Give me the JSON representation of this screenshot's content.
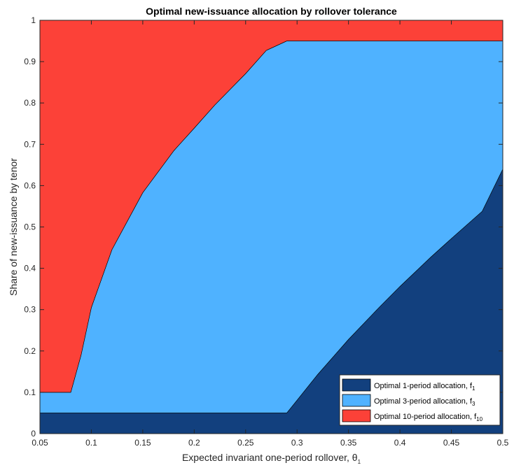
{
  "chart_data": {
    "type": "area",
    "title": "Optimal new-issuance allocation by rollover tolerance",
    "xlabel": "Expected invariant one-period rollover, θ",
    "xlabel_sub": "1",
    "ylabel": "Share of new-issuance by tenor",
    "xlim": [
      0.05,
      0.5
    ],
    "ylim": [
      0,
      1
    ],
    "x_ticks": [
      0.05,
      0.1,
      0.15,
      0.2,
      0.25,
      0.3,
      0.35,
      0.4,
      0.45,
      0.5
    ],
    "x_tick_labels": [
      "0.05",
      "0.1",
      "0.15",
      "0.2",
      "0.25",
      "0.3",
      "0.35",
      "0.4",
      "0.45",
      "0.5"
    ],
    "y_ticks": [
      0,
      0.1,
      0.2,
      0.3,
      0.4,
      0.5,
      0.6,
      0.7,
      0.8,
      0.9,
      1
    ],
    "y_tick_labels": [
      "0",
      "0.1",
      "0.2",
      "0.3",
      "0.4",
      "0.5",
      "0.6",
      "0.7",
      "0.8",
      "0.9",
      "1"
    ],
    "grid": false,
    "stacked": true,
    "legend_position": "bottom-right",
    "x": [
      0.05,
      0.08,
      0.09,
      0.1,
      0.12,
      0.15,
      0.18,
      0.2,
      0.22,
      0.25,
      0.27,
      0.29,
      0.3,
      0.32,
      0.35,
      0.38,
      0.4,
      0.43,
      0.45,
      0.48,
      0.5
    ],
    "series": [
      {
        "name": "Optimal 1-period allocation, f",
        "sub": "1",
        "color": "#12407e",
        "values": [
          0.05,
          0.05,
          0.05,
          0.05,
          0.05,
          0.05,
          0.05,
          0.05,
          0.05,
          0.05,
          0.05,
          0.05,
          0.081,
          0.143,
          0.228,
          0.306,
          0.356,
          0.427,
          0.472,
          0.538,
          0.64
        ]
      },
      {
        "name": "Optimal 3-period allocation, f",
        "sub": "3",
        "color": "#4fb2ff",
        "values": [
          0.05,
          0.05,
          0.14,
          0.255,
          0.395,
          0.533,
          0.634,
          0.689,
          0.745,
          0.821,
          0.877,
          0.9,
          0.869,
          0.807,
          0.722,
          0.644,
          0.594,
          0.523,
          0.478,
          0.412,
          0.31
        ]
      },
      {
        "name": "Optimal 10-period allocation, f",
        "sub": "10",
        "color": "#fc4138",
        "values": [
          0.9,
          0.9,
          0.81,
          0.695,
          0.555,
          0.417,
          0.316,
          0.261,
          0.205,
          0.129,
          0.073,
          0.05,
          0.05,
          0.05,
          0.05,
          0.05,
          0.05,
          0.05,
          0.05,
          0.05,
          0.05
        ]
      }
    ]
  }
}
